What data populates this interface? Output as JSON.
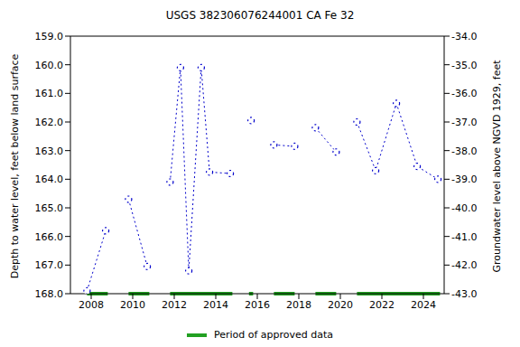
{
  "chart_data": {
    "type": "line",
    "title": "USGS 382306076244001 CA Fe  32",
    "y_label": "Depth to water level, feet below land surface",
    "y2_label": "Groundwater level above NGVD 1929, feet",
    "x": [
      2007.8,
      2008.7,
      2009.2,
      2009.8,
      2010.7,
      2011.2,
      2011.8,
      2012.3,
      2012.7,
      2013.3,
      2013.7,
      2014.7,
      2015.2,
      2015.7,
      2016.2,
      2016.8,
      2017.8,
      2018.3,
      2018.8,
      2019.8,
      2020.3,
      2020.8,
      2021.7,
      2022.7,
      2023.7,
      2024.7
    ],
    "series": [
      {
        "name": "Depth to water level",
        "color": "#0000cc",
        "marker": "circle",
        "line_style": "dotted",
        "values": [
          167.9,
          165.8,
          null,
          164.7,
          167.05,
          null,
          164.1,
          160.1,
          167.2,
          160.1,
          163.75,
          163.8,
          null,
          161.95,
          null,
          162.8,
          162.85,
          null,
          162.2,
          163.05,
          null,
          162.0,
          163.7,
          161.35,
          163.55,
          164.0
        ]
      }
    ],
    "approved_periods": [
      [
        2007.8,
        2008.8
      ],
      [
        2009.8,
        2010.8
      ],
      [
        2011.8,
        2014.8
      ],
      [
        2015.6,
        2015.8
      ],
      [
        2016.8,
        2017.8
      ],
      [
        2018.8,
        2019.8
      ],
      [
        2020.8,
        2024.8
      ]
    ],
    "approved_color": "#22a022",
    "legend_label": "Period of approved data",
    "xlim": [
      2007,
      2025
    ],
    "xticks": [
      2008,
      2010,
      2012,
      2014,
      2016,
      2018,
      2020,
      2022,
      2024
    ],
    "ylim": [
      159,
      168
    ],
    "yticks": [
      {
        "value": 159,
        "label": "159.0"
      },
      {
        "value": 160,
        "label": "160.0"
      },
      {
        "value": 161,
        "label": "161.0"
      },
      {
        "value": 162,
        "label": "162.0"
      },
      {
        "value": 163,
        "label": "163.0"
      },
      {
        "value": 164,
        "label": "164.0"
      },
      {
        "value": 165,
        "label": "165.0"
      },
      {
        "value": 166,
        "label": "166.0"
      },
      {
        "value": 167,
        "label": "167.0"
      },
      {
        "value": 168,
        "label": "168.0"
      }
    ],
    "y2lim": [
      -43,
      -34
    ],
    "y2ticks": [
      {
        "value": -34,
        "label": "-34.0"
      },
      {
        "value": -35,
        "label": "-35.0"
      },
      {
        "value": -36,
        "label": "-36.0"
      },
      {
        "value": -37,
        "label": "-37.0"
      },
      {
        "value": -38,
        "label": "-38.0"
      },
      {
        "value": -39,
        "label": "-39.0"
      },
      {
        "value": -40,
        "label": "-40.0"
      },
      {
        "value": -41,
        "label": "-41.0"
      },
      {
        "value": -42,
        "label": "-42.0"
      },
      {
        "value": -43,
        "label": "-43.0"
      }
    ],
    "grid": false
  }
}
